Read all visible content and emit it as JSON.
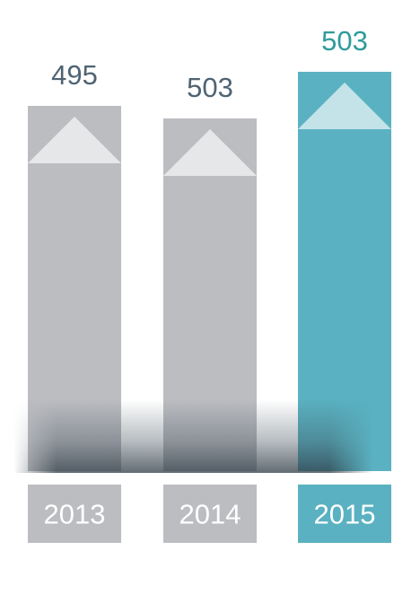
{
  "chart_data": {
    "type": "bar",
    "categories": [
      "2013",
      "2014",
      "2015"
    ],
    "values": [
      495,
      503,
      503
    ],
    "value_labels": [
      "495",
      "503",
      "503"
    ],
    "highlighted_category": "2015",
    "colors": {
      "default_bar": "#bcbdc1",
      "highlight_bar": "#5ab1c1",
      "default_value_text": "#4f6372",
      "highlight_value_text": "#2d9c9a",
      "arrow_default": "#e6e7e9",
      "arrow_highlight": "#c3e3e8"
    },
    "grid": false,
    "legend": "none"
  }
}
